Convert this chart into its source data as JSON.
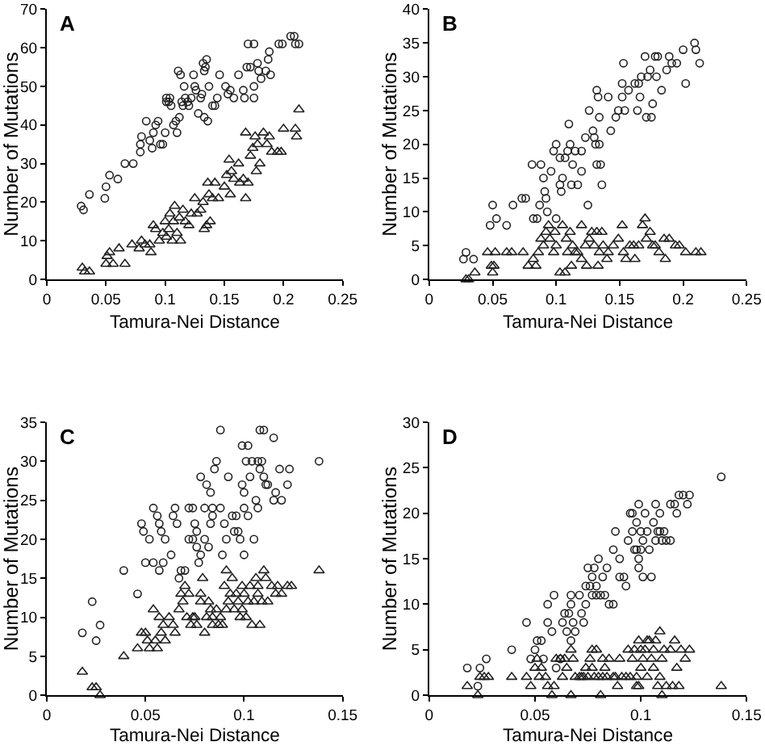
{
  "chart_data": [
    {
      "type": "scatter",
      "title": "A",
      "xlabel": "Tamura-Nei Distance",
      "ylabel": "Number of Mutations",
      "xlim": [
        0,
        0.25
      ],
      "xticks": [
        0,
        0.05,
        0.1,
        0.15,
        0.2,
        0.25
      ],
      "ylim": [
        0,
        70
      ],
      "yticks": [
        0,
        10,
        20,
        30,
        40,
        50,
        60,
        70
      ],
      "series": [
        {
          "color": "#222222",
          "marker": "circle",
          "x": [
            0.029,
            0.031,
            0.036,
            0.049,
            0.05,
            0.053,
            0.06,
            0.066,
            0.073,
            0.079,
            0.079,
            0.08,
            0.084,
            0.087,
            0.089,
            0.09,
            0.092,
            0.094,
            0.096,
            0.098,
            0.1,
            0.101,
            0.101,
            0.103,
            0.104,
            0.105,
            0.107,
            0.109,
            0.11,
            0.111,
            0.112,
            0.113,
            0.114,
            0.115,
            0.116,
            0.117,
            0.119,
            0.12,
            0.122,
            0.124,
            0.125,
            0.126,
            0.128,
            0.13,
            0.131,
            0.132,
            0.133,
            0.133,
            0.134,
            0.135,
            0.136,
            0.137,
            0.14,
            0.142,
            0.144,
            0.146,
            0.151,
            0.153,
            0.155,
            0.158,
            0.162,
            0.166,
            0.167,
            0.169,
            0.17,
            0.172,
            0.175,
            0.175,
            0.175,
            0.178,
            0.179,
            0.181,
            0.185,
            0.187,
            0.188,
            0.189,
            0.196,
            0.199,
            0.206,
            0.209,
            0.21,
            0.213
          ],
          "values": [
            19,
            18,
            22,
            21,
            24,
            27,
            26,
            30,
            30,
            33,
            35,
            37,
            41,
            36,
            34,
            38,
            40,
            41,
            35,
            35,
            38,
            47,
            46,
            46,
            47,
            45,
            40,
            41,
            38,
            54,
            42,
            53,
            46,
            45,
            50,
            47,
            46,
            45,
            47,
            53,
            50,
            49,
            43,
            47,
            48,
            56,
            54,
            42,
            55,
            57,
            41,
            50,
            45,
            45,
            47,
            53,
            50,
            48,
            49,
            47,
            53,
            49,
            47,
            55,
            61,
            55,
            47,
            61,
            50,
            56,
            54,
            52,
            54,
            57,
            59,
            53,
            61,
            61,
            63,
            63,
            61,
            61
          ]
        },
        {
          "color": "#222222",
          "marker": "triangle",
          "x": [
            0.03,
            0.032,
            0.036,
            0.05,
            0.051,
            0.053,
            0.056,
            0.061,
            0.066,
            0.072,
            0.078,
            0.08,
            0.083,
            0.087,
            0.088,
            0.09,
            0.092,
            0.095,
            0.098,
            0.1,
            0.101,
            0.103,
            0.104,
            0.106,
            0.107,
            0.108,
            0.11,
            0.112,
            0.113,
            0.115,
            0.117,
            0.12,
            0.122,
            0.125,
            0.127,
            0.13,
            0.132,
            0.133,
            0.135,
            0.136,
            0.137,
            0.138,
            0.14,
            0.142,
            0.145,
            0.15,
            0.152,
            0.154,
            0.155,
            0.156,
            0.158,
            0.162,
            0.163,
            0.166,
            0.168,
            0.168,
            0.17,
            0.172,
            0.174,
            0.176,
            0.177,
            0.178,
            0.18,
            0.183,
            0.186,
            0.188,
            0.19,
            0.195,
            0.198,
            0.2,
            0.21,
            0.211,
            0.213
          ],
          "values": [
            3,
            2,
            2,
            4,
            6,
            7,
            4,
            8,
            4,
            9,
            8,
            10,
            9,
            9,
            7,
            14,
            13,
            10,
            12,
            15,
            11,
            13,
            17,
            10,
            15,
            19,
            12,
            16,
            10,
            18,
            15,
            14,
            17,
            21,
            17,
            18,
            20,
            13,
            14,
            25,
            22,
            15,
            21,
            25,
            21,
            24,
            27,
            31,
            22,
            28,
            26,
            30,
            25,
            26,
            38,
            21,
            25,
            32,
            34,
            37,
            28,
            35,
            30,
            38,
            35,
            37,
            33,
            33,
            33,
            39,
            39,
            37,
            44
          ]
        }
      ]
    },
    {
      "type": "scatter",
      "title": "B",
      "xlabel": "Tamura-Nei Distance",
      "ylabel": "Number of Mutations",
      "xlim": [
        0,
        0.25
      ],
      "xticks": [
        0,
        0.05,
        0.1,
        0.15,
        0.2,
        0.25
      ],
      "ylim": [
        0,
        40
      ],
      "yticks": [
        0,
        5,
        10,
        15,
        20,
        25,
        30,
        35,
        40
      ],
      "series": [
        {
          "color": "#222222",
          "marker": "circle",
          "x": [
            0.027,
            0.029,
            0.035,
            0.048,
            0.05,
            0.053,
            0.061,
            0.066,
            0.073,
            0.076,
            0.081,
            0.082,
            0.085,
            0.087,
            0.088,
            0.09,
            0.091,
            0.092,
            0.093,
            0.096,
            0.098,
            0.1,
            0.1,
            0.103,
            0.103,
            0.104,
            0.105,
            0.107,
            0.109,
            0.11,
            0.111,
            0.112,
            0.113,
            0.115,
            0.117,
            0.12,
            0.12,
            0.123,
            0.125,
            0.126,
            0.129,
            0.13,
            0.131,
            0.132,
            0.132,
            0.133,
            0.134,
            0.134,
            0.135,
            0.136,
            0.141,
            0.143,
            0.147,
            0.149,
            0.152,
            0.152,
            0.153,
            0.154,
            0.157,
            0.162,
            0.164,
            0.165,
            0.166,
            0.167,
            0.17,
            0.171,
            0.172,
            0.174,
            0.175,
            0.176,
            0.178,
            0.179,
            0.18,
            0.183,
            0.187,
            0.189,
            0.191,
            0.195,
            0.2,
            0.202,
            0.209,
            0.21,
            0.213
          ],
          "values": [
            3,
            4,
            3,
            8,
            11,
            9,
            8,
            11,
            12,
            12,
            17,
            9,
            9,
            11,
            17,
            15,
            13,
            12,
            10,
            16,
            19,
            20,
            9,
            18,
            14,
            13,
            15,
            18,
            19,
            23,
            20,
            14,
            17,
            19,
            14,
            19,
            16,
            21,
            11,
            25,
            22,
            21,
            20,
            17,
            28,
            27,
            24,
            20,
            17,
            14,
            27,
            22,
            24,
            25,
            27,
            29,
            32,
            25,
            28,
            29,
            25,
            29,
            27,
            30,
            33,
            24,
            30,
            31,
            24,
            26,
            33,
            30,
            33,
            28,
            31,
            33,
            32,
            32,
            34,
            29,
            35,
            34,
            32
          ]
        },
        {
          "color": "#222222",
          "marker": "triangle",
          "x": [
            0.029,
            0.031,
            0.036,
            0.046,
            0.049,
            0.05,
            0.051,
            0.052,
            0.061,
            0.065,
            0.074,
            0.078,
            0.082,
            0.084,
            0.086,
            0.088,
            0.09,
            0.092,
            0.094,
            0.095,
            0.098,
            0.099,
            0.1,
            0.103,
            0.105,
            0.107,
            0.108,
            0.109,
            0.111,
            0.112,
            0.113,
            0.115,
            0.117,
            0.12,
            0.12,
            0.123,
            0.124,
            0.126,
            0.128,
            0.13,
            0.132,
            0.133,
            0.134,
            0.136,
            0.137,
            0.14,
            0.141,
            0.145,
            0.149,
            0.152,
            0.153,
            0.155,
            0.158,
            0.161,
            0.162,
            0.165,
            0.168,
            0.17,
            0.171,
            0.174,
            0.176,
            0.178,
            0.181,
            0.185,
            0.186,
            0.189,
            0.194,
            0.197,
            0.202,
            0.21,
            0.214
          ],
          "values": [
            0,
            0,
            1,
            4,
            2,
            1,
            2,
            4,
            4,
            4,
            4,
            2,
            3,
            2,
            4,
            6,
            5,
            7,
            8,
            6,
            4,
            7,
            5,
            1,
            8,
            1,
            6,
            4,
            7,
            2,
            5,
            4,
            4,
            8,
            3,
            5,
            2,
            6,
            7,
            5,
            7,
            2,
            4,
            7,
            5,
            3,
            4,
            5,
            6,
            8,
            4,
            3,
            5,
            5,
            3,
            5,
            8,
            9,
            6,
            7,
            5,
            5,
            4,
            6,
            3,
            6,
            5,
            5,
            4,
            4,
            4
          ]
        }
      ]
    },
    {
      "type": "scatter",
      "title": "C",
      "xlabel": "Tamura-Nei Distance",
      "ylabel": "Number of Mutations",
      "xlim": [
        0,
        0.15
      ],
      "xticks": [
        0,
        0.05,
        0.1,
        0.15
      ],
      "ylim": [
        0,
        35
      ],
      "yticks": [
        0,
        5,
        10,
        15,
        20,
        25,
        30,
        35
      ],
      "series": [
        {
          "color": "#222222",
          "marker": "circle",
          "x": [
            0.018,
            0.023,
            0.025,
            0.027,
            0.039,
            0.046,
            0.048,
            0.049,
            0.05,
            0.052,
            0.054,
            0.054,
            0.056,
            0.057,
            0.057,
            0.058,
            0.059,
            0.06,
            0.063,
            0.064,
            0.065,
            0.066,
            0.067,
            0.068,
            0.07,
            0.072,
            0.072,
            0.074,
            0.074,
            0.075,
            0.076,
            0.076,
            0.077,
            0.078,
            0.078,
            0.08,
            0.08,
            0.081,
            0.082,
            0.083,
            0.083,
            0.084,
            0.084,
            0.085,
            0.086,
            0.088,
            0.088,
            0.089,
            0.09,
            0.091,
            0.092,
            0.094,
            0.095,
            0.096,
            0.097,
            0.098,
            0.099,
            0.099,
            0.1,
            0.1,
            0.1,
            0.101,
            0.102,
            0.102,
            0.103,
            0.104,
            0.105,
            0.106,
            0.107,
            0.107,
            0.108,
            0.108,
            0.109,
            0.11,
            0.11,
            0.111,
            0.112,
            0.115,
            0.115,
            0.116,
            0.118,
            0.119,
            0.122,
            0.123,
            0.138
          ],
          "values": [
            8,
            12,
            7,
            9,
            16,
            13,
            22,
            21,
            17,
            20,
            17,
            24,
            23,
            22,
            16,
            21,
            17,
            20,
            18,
            23,
            24,
            22,
            15,
            16,
            16,
            20,
            24,
            20,
            24,
            22,
            19,
            21,
            17,
            28,
            18,
            20,
            24,
            27,
            19,
            22,
            26,
            23,
            24,
            29,
            30,
            24,
            34,
            18,
            22,
            20,
            28,
            23,
            21,
            23,
            21,
            20,
            27,
            32,
            24,
            18,
            26,
            30,
            32,
            23,
            28,
            30,
            20,
            25,
            30,
            24,
            34,
            29,
            30,
            34,
            28,
            27,
            27,
            33,
            25,
            26,
            29,
            25,
            27,
            29,
            30
          ]
        },
        {
          "color": "#222222",
          "marker": "triangle",
          "x": [
            0.018,
            0.023,
            0.025,
            0.027,
            0.039,
            0.046,
            0.048,
            0.05,
            0.051,
            0.052,
            0.054,
            0.055,
            0.056,
            0.057,
            0.058,
            0.059,
            0.06,
            0.062,
            0.064,
            0.065,
            0.067,
            0.068,
            0.069,
            0.07,
            0.071,
            0.072,
            0.073,
            0.074,
            0.075,
            0.076,
            0.078,
            0.078,
            0.079,
            0.08,
            0.081,
            0.082,
            0.083,
            0.084,
            0.084,
            0.086,
            0.087,
            0.088,
            0.089,
            0.09,
            0.091,
            0.091,
            0.092,
            0.093,
            0.094,
            0.095,
            0.096,
            0.097,
            0.098,
            0.099,
            0.099,
            0.1,
            0.101,
            0.102,
            0.103,
            0.104,
            0.105,
            0.106,
            0.107,
            0.107,
            0.108,
            0.109,
            0.11,
            0.111,
            0.112,
            0.114,
            0.116,
            0.117,
            0.119,
            0.122,
            0.124,
            0.138
          ],
          "values": [
            3,
            1,
            1,
            0,
            5,
            6,
            8,
            8,
            7,
            6,
            11,
            7,
            6,
            10,
            8,
            9,
            7,
            10,
            9,
            8,
            11,
            13,
            12,
            14,
            10,
            13,
            9,
            10,
            10,
            9,
            13,
            12,
            15,
            8,
            10,
            12,
            11,
            9,
            10,
            11,
            9,
            10,
            9,
            14,
            11,
            16,
            12,
            13,
            15,
            11,
            13,
            12,
            10,
            14,
            11,
            13,
            10,
            12,
            14,
            9,
            12,
            15,
            13,
            14,
            9,
            12,
            16,
            15,
            12,
            14,
            13,
            14,
            13,
            14,
            14,
            16
          ]
        }
      ]
    },
    {
      "type": "scatter",
      "title": "D",
      "xlabel": "Tamura-Nei Distance",
      "ylabel": "Number of Mutations",
      "xlim": [
        0,
        0.15
      ],
      "xticks": [
        0,
        0.05,
        0.1,
        0.15
      ],
      "ylim": [
        0,
        30
      ],
      "yticks": [
        0,
        5,
        10,
        15,
        20,
        25,
        30
      ],
      "series": [
        {
          "color": "#222222",
          "marker": "circle",
          "x": [
            0.018,
            0.023,
            0.024,
            0.027,
            0.039,
            0.046,
            0.048,
            0.05,
            0.051,
            0.053,
            0.054,
            0.056,
            0.056,
            0.058,
            0.059,
            0.06,
            0.062,
            0.063,
            0.064,
            0.065,
            0.066,
            0.067,
            0.067,
            0.067,
            0.068,
            0.069,
            0.071,
            0.072,
            0.073,
            0.074,
            0.074,
            0.075,
            0.076,
            0.077,
            0.077,
            0.078,
            0.079,
            0.079,
            0.08,
            0.081,
            0.082,
            0.083,
            0.084,
            0.085,
            0.087,
            0.087,
            0.088,
            0.09,
            0.09,
            0.092,
            0.093,
            0.094,
            0.095,
            0.096,
            0.096,
            0.097,
            0.098,
            0.098,
            0.099,
            0.099,
            0.099,
            0.1,
            0.1,
            0.101,
            0.101,
            0.102,
            0.103,
            0.104,
            0.105,
            0.106,
            0.107,
            0.107,
            0.108,
            0.109,
            0.109,
            0.11,
            0.111,
            0.112,
            0.114,
            0.114,
            0.116,
            0.117,
            0.118,
            0.12,
            0.122,
            0.123,
            0.138
          ],
          "values": [
            3,
            1,
            3,
            4,
            5,
            8,
            4,
            5,
            6,
            6,
            4,
            8,
            10,
            7,
            11,
            3,
            4,
            8,
            9,
            7,
            9,
            11,
            10,
            6,
            8,
            7,
            11,
            9,
            8,
            12,
            10,
            14,
            12,
            11,
            13,
            14,
            11,
            12,
            15,
            11,
            13,
            11,
            14,
            10,
            10,
            16,
            18,
            13,
            15,
            13,
            12,
            17,
            20,
            18,
            20,
            16,
            19,
            16,
            15,
            14,
            21,
            18,
            16,
            13,
            17,
            20,
            18,
            16,
            13,
            19,
            21,
            17,
            18,
            20,
            18,
            17,
            18,
            17,
            17,
            21,
            21,
            20,
            22,
            22,
            21,
            22,
            24
          ]
        },
        {
          "color": "#222222",
          "marker": "triangle",
          "x": [
            0.018,
            0.023,
            0.024,
            0.026,
            0.028,
            0.039,
            0.046,
            0.048,
            0.05,
            0.051,
            0.052,
            0.053,
            0.055,
            0.056,
            0.058,
            0.059,
            0.06,
            0.062,
            0.063,
            0.064,
            0.065,
            0.067,
            0.067,
            0.068,
            0.069,
            0.071,
            0.072,
            0.073,
            0.074,
            0.075,
            0.076,
            0.077,
            0.077,
            0.078,
            0.079,
            0.08,
            0.081,
            0.082,
            0.082,
            0.083,
            0.084,
            0.085,
            0.087,
            0.088,
            0.089,
            0.09,
            0.091,
            0.093,
            0.094,
            0.095,
            0.096,
            0.097,
            0.098,
            0.098,
            0.099,
            0.099,
            0.1,
            0.1,
            0.101,
            0.102,
            0.103,
            0.103,
            0.104,
            0.105,
            0.106,
            0.106,
            0.107,
            0.108,
            0.109,
            0.109,
            0.11,
            0.11,
            0.111,
            0.112,
            0.114,
            0.115,
            0.116,
            0.117,
            0.118,
            0.119,
            0.121,
            0.123,
            0.138
          ],
          "values": [
            1,
            0,
            2,
            2,
            2,
            2,
            2,
            1,
            3,
            4,
            2,
            3,
            2,
            1,
            0,
            1,
            4,
            4,
            2,
            4,
            3,
            0,
            5,
            4,
            2,
            2,
            2,
            2,
            3,
            2,
            4,
            3,
            5,
            2,
            5,
            2,
            0,
            4,
            2,
            3,
            2,
            4,
            2,
            2,
            1,
            4,
            2,
            2,
            5,
            2,
            4,
            5,
            2,
            1,
            6,
            1,
            5,
            3,
            4,
            5,
            2,
            6,
            6,
            4,
            5,
            3,
            6,
            1,
            7,
            2,
            4,
            0,
            5,
            1,
            5,
            1,
            6,
            3,
            1,
            5,
            4,
            5,
            1
          ]
        }
      ]
    }
  ]
}
